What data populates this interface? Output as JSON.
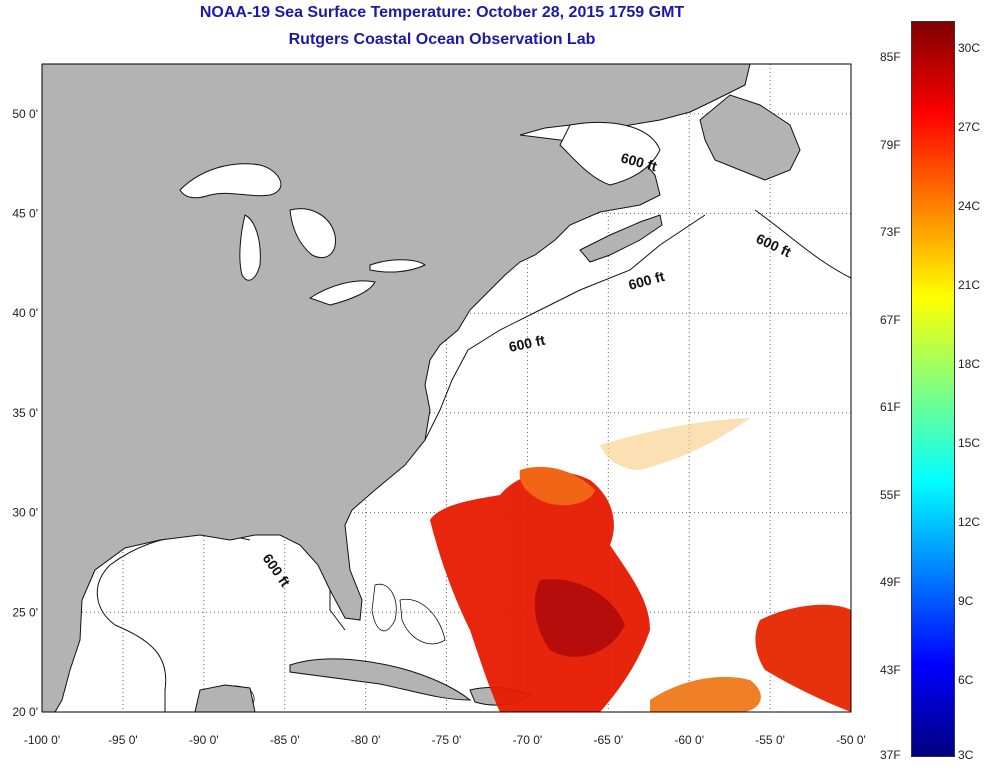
{
  "title": "NOAA-19 Sea Surface Temperature:  October 28, 2015 1759 GMT",
  "subtitle": "Rutgers Coastal Ocean Observation Lab",
  "map": {
    "lon_range": [
      -100,
      -50
    ],
    "lat_range": [
      20,
      52.5
    ],
    "x_ticks": [
      "-100 0'",
      "-95 0'",
      "-90 0'",
      "-85 0'",
      "-80 0'",
      "-75 0'",
      "-70 0'",
      "-65 0'",
      "-60 0'",
      "-55 0'",
      "-50 0'"
    ],
    "y_ticks": [
      "50 0'",
      "45 0'",
      "40 0'",
      "35 0'",
      "30 0'",
      "25 0'",
      "20 0'"
    ],
    "contour_labels": [
      "600 ft",
      "600 ft",
      "600 ft",
      "600 ft",
      "600 ft"
    ],
    "land_color": "#b3b3b3",
    "grid": "dotted"
  },
  "colorbar": {
    "fahrenheit_labels": [
      "85F",
      "79F",
      "73F",
      "67F",
      "61F",
      "55F",
      "49F",
      "43F",
      "37F"
    ],
    "celsius_labels": [
      "30C",
      "27C",
      "24C",
      "21C",
      "18C",
      "15C",
      "12C",
      "9C",
      "6C",
      "3C"
    ],
    "colors": [
      "#7f0000",
      "#ff0000",
      "#ff8000",
      "#ffff00",
      "#80ff80",
      "#00ffff",
      "#0080ff",
      "#0000ff",
      "#00007f"
    ]
  }
}
